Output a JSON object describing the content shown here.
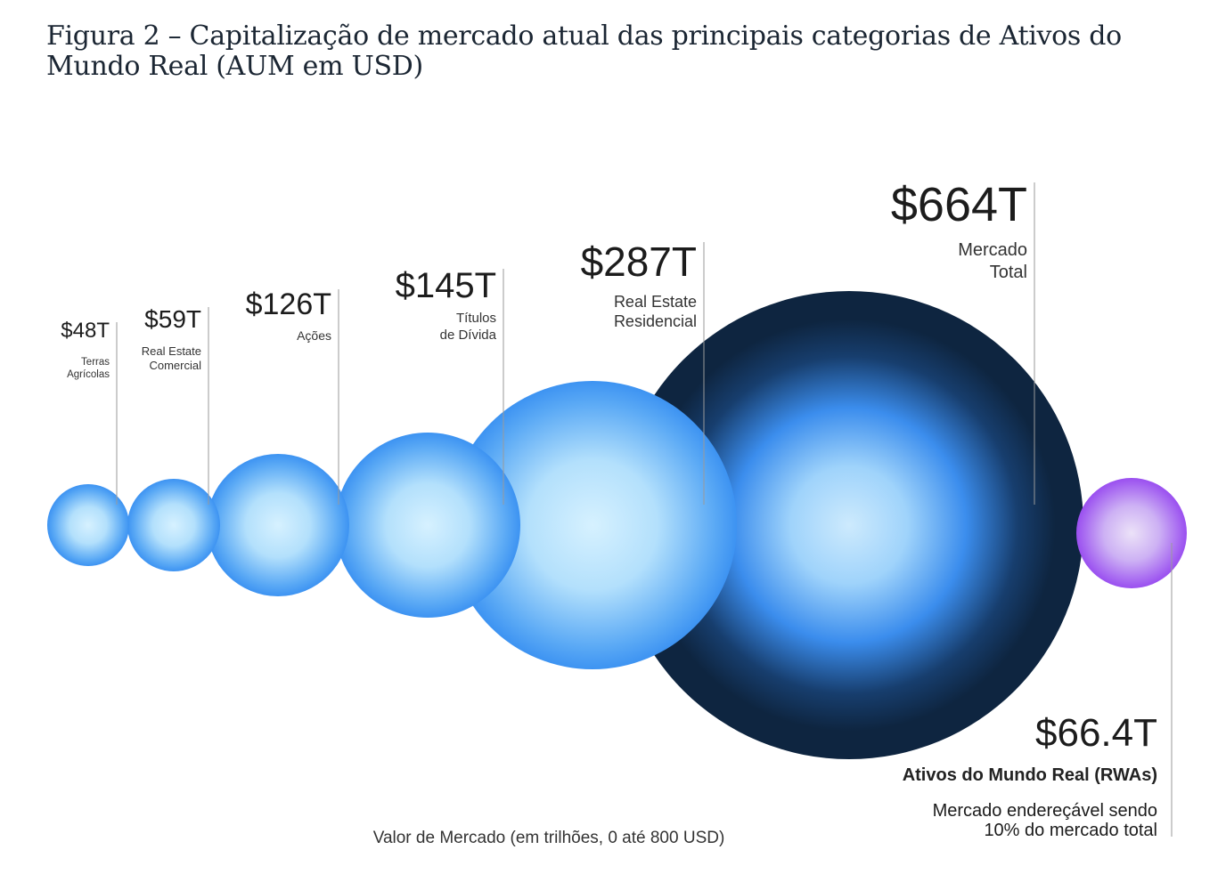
{
  "title": "Figura 2 – Capitalização de mercado atual das principais categorias de Ativos do Mundo Real (AUM em USD)",
  "chart_data": {
    "type": "bubble",
    "title": "Figura 2 – Capitalização de mercado atual das principais categorias de Ativos do Mundo Real (AUM em USD)",
    "xlabel": "Valor de Mercado (em trilhões, 0 até 800 USD)",
    "unit": "trilhões USD",
    "series": [
      {
        "value": 48,
        "value_label": "$48T",
        "label": [
          "Terras",
          "Agrícolas"
        ],
        "color": "#3e95f2"
      },
      {
        "value": 59,
        "value_label": "$59T",
        "label": [
          "Real Estate",
          "Comercial"
        ],
        "color": "#3e95f2"
      },
      {
        "value": 126,
        "value_label": "$126T",
        "label": [
          "Ações"
        ],
        "color": "#3e95f2"
      },
      {
        "value": 145,
        "value_label": "$145T",
        "label": [
          "Títulos",
          "de Dívida"
        ],
        "color": "#3e95f2"
      },
      {
        "value": 287,
        "value_label": "$287T",
        "label": [
          "Real Estate",
          "Residencial"
        ],
        "color": "#3e95f2"
      },
      {
        "value": 664,
        "value_label": "$664T",
        "label": [
          "Mercado",
          "Total"
        ],
        "color": "#0e2540"
      },
      {
        "value": 66.4,
        "value_label": "$66.4T",
        "label": [
          "Ativos do Mundo Real (RWAs)"
        ],
        "note": [
          "Mercado endereçável sendo",
          "10% do mercado total"
        ],
        "color": "#9a4ff0"
      }
    ]
  }
}
